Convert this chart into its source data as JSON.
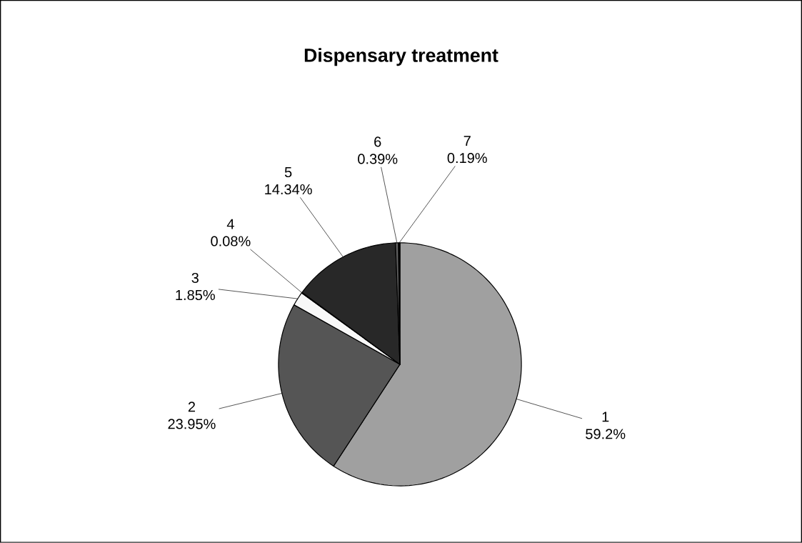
{
  "chart_data": {
    "type": "pie",
    "title": "Dispensary treatment",
    "categories": [
      "1",
      "2",
      "3",
      "4",
      "5",
      "6",
      "7"
    ],
    "values": [
      59.2,
      23.95,
      1.85,
      0.08,
      14.34,
      0.39,
      0.19
    ],
    "value_labels": [
      "59.2%",
      "23.95%",
      "1.85%",
      "0.08%",
      "14.34%",
      "0.39%",
      "0.19%"
    ],
    "colors": [
      "#a0a0a0",
      "#555555",
      "#f8f8f8",
      "#888888",
      "#282828",
      "#606060",
      "#000000"
    ]
  }
}
